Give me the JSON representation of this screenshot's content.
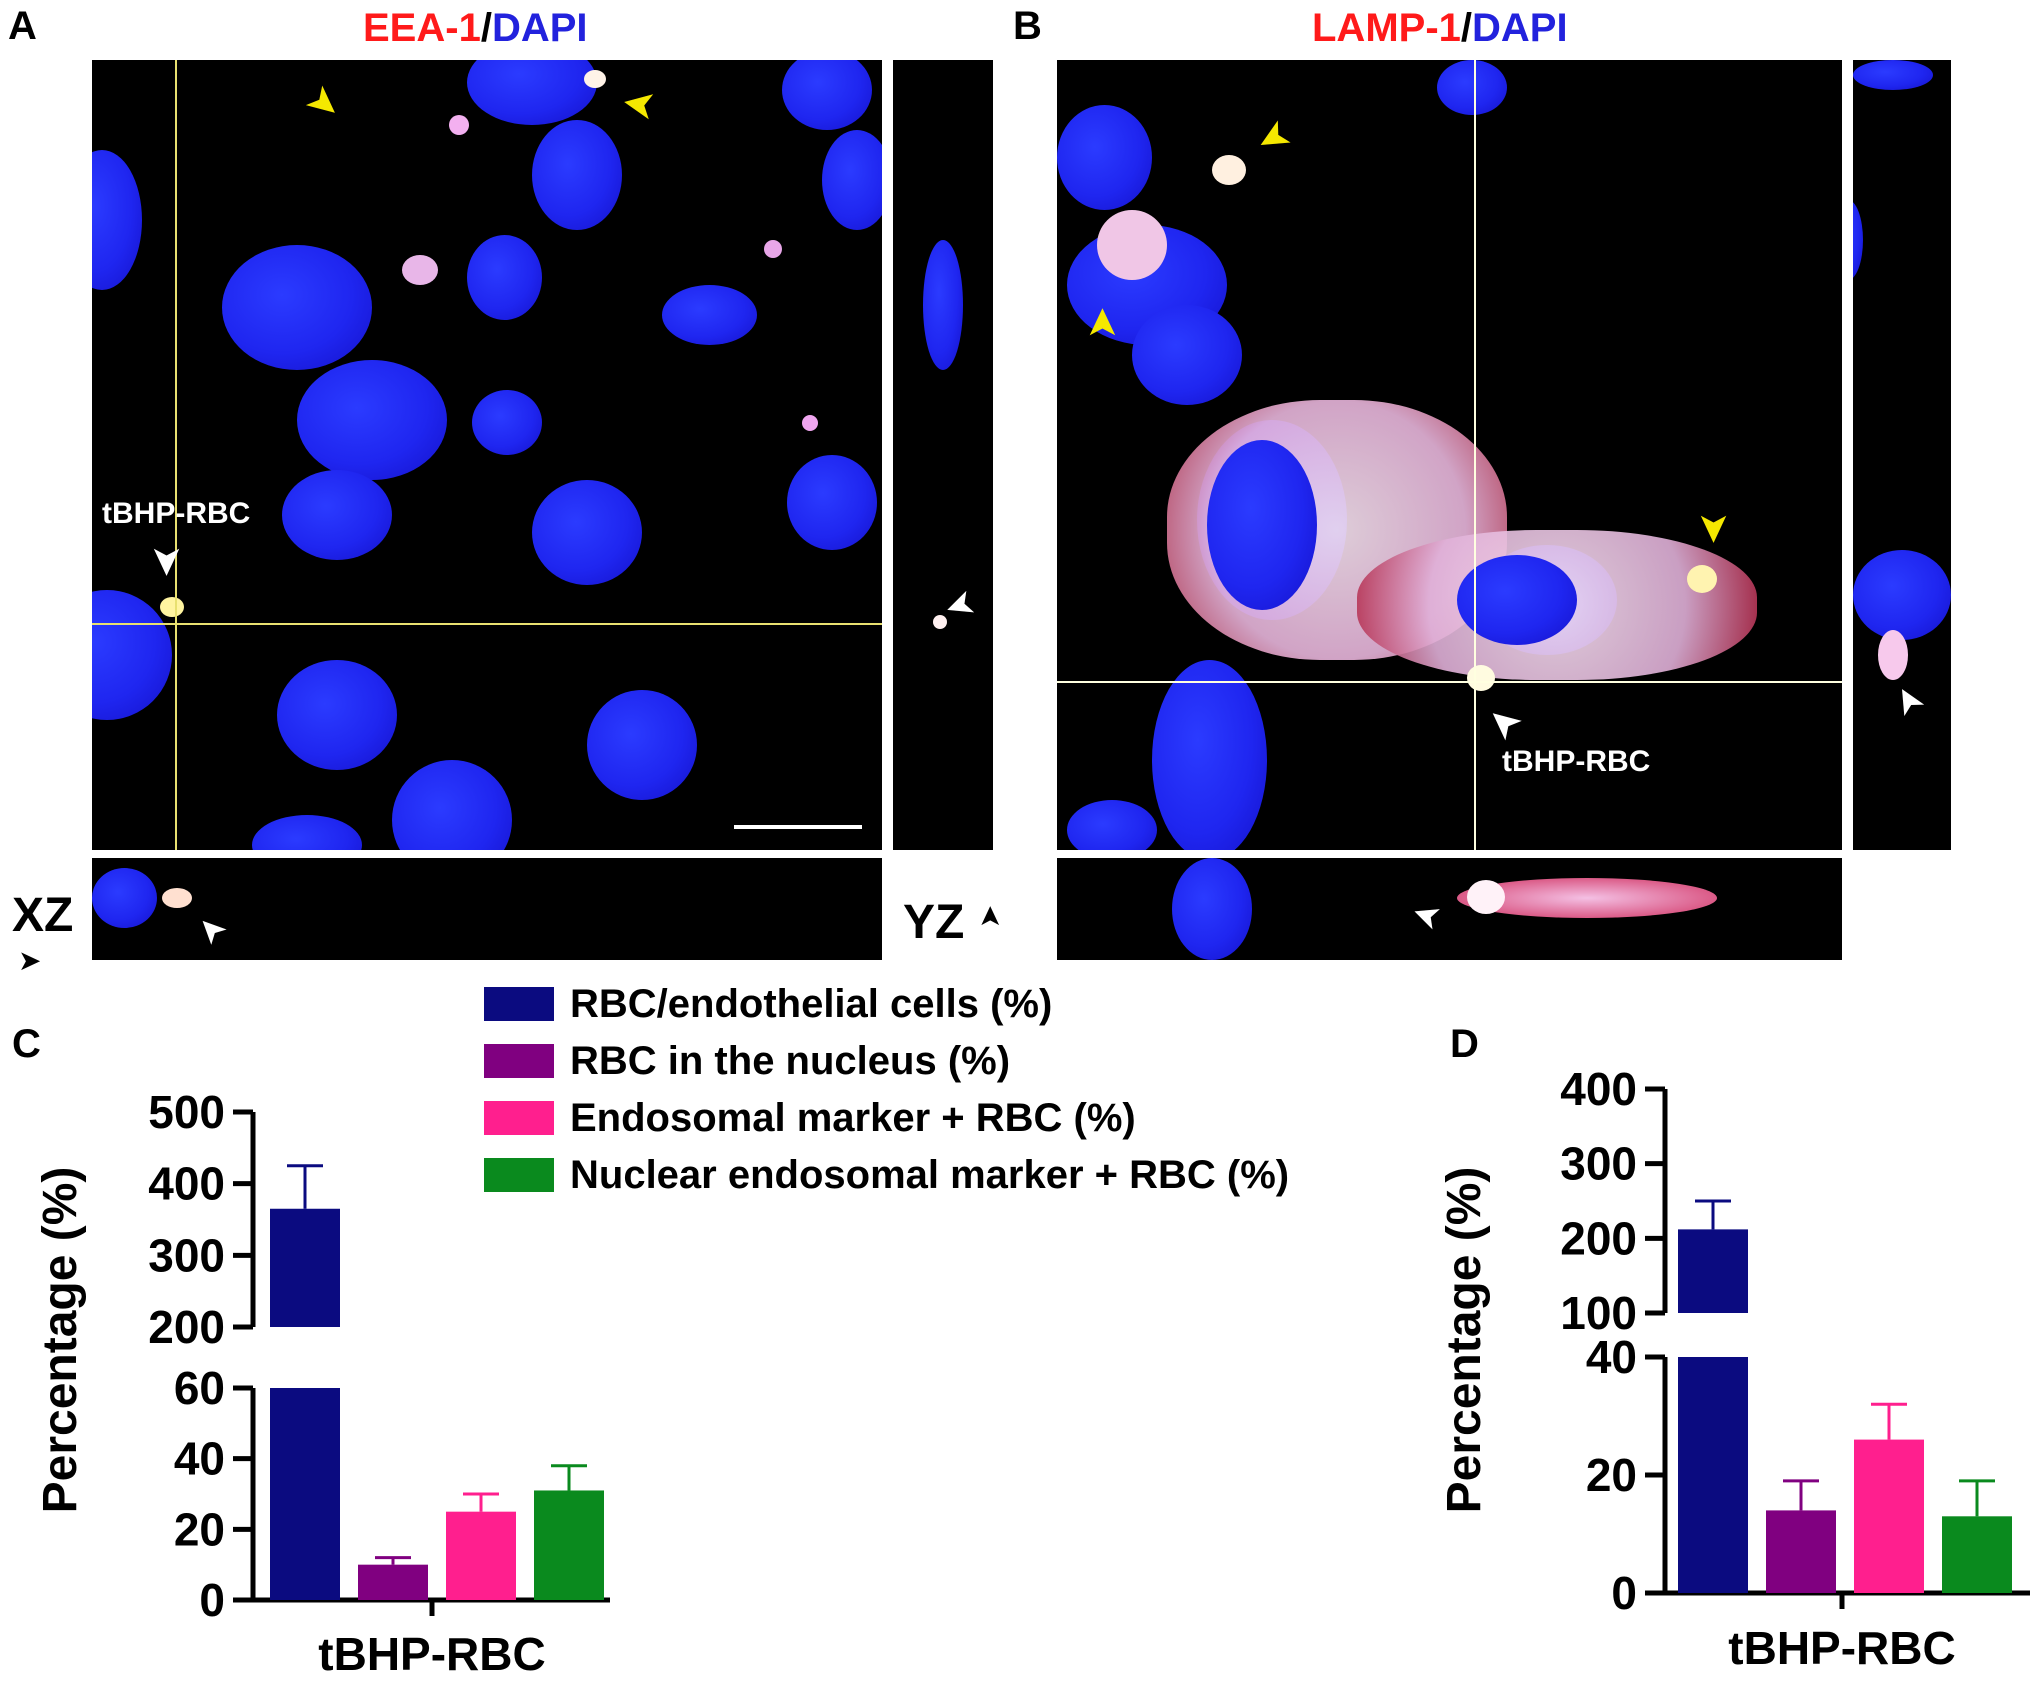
{
  "panel_a": {
    "letter": "A",
    "title_marker": "EEA-1",
    "title_sep": "/",
    "title_stain": "DAPI",
    "cell_label": "tBHP-RBC",
    "xz_label": "XZ",
    "yz_label": "YZ"
  },
  "panel_b": {
    "letter": "B",
    "title_marker": "LAMP-1",
    "title_sep": "/",
    "title_stain": "DAPI",
    "cell_label": "tBHP-RBC"
  },
  "panel_c": {
    "letter": "C"
  },
  "panel_d": {
    "letter": "D"
  },
  "legend": [
    {
      "label": "RBC/endothelial cells (%)",
      "color": "#0b0b80"
    },
    {
      "label": "RBC in the nucleus (%)",
      "color": "#800080"
    },
    {
      "label": "Endosomal marker + RBC (%)",
      "color": "#ff1f8e"
    },
    {
      "label": "Nuclear endosomal marker + RBC (%)",
      "color": "#0a8a1e"
    }
  ],
  "chart_data": [
    {
      "type": "bar",
      "panel": "C",
      "ylabel": "Percentage (%)",
      "xlabel": "tBHP-RBC",
      "categories": [
        "tBHP-RBC"
      ],
      "broken_axis": {
        "lower_range": [
          0,
          60
        ],
        "upper_range": [
          200,
          500
        ]
      },
      "lower_ticks": [
        "0",
        "20",
        "40",
        "60"
      ],
      "upper_ticks": [
        "200",
        "300",
        "400",
        "500"
      ],
      "series": [
        {
          "name": "RBC/endothelial cells (%)",
          "values": [
            365
          ],
          "error": [
            60
          ],
          "color": "#0b0b80"
        },
        {
          "name": "RBC in the nucleus (%)",
          "values": [
            10
          ],
          "error": [
            2
          ],
          "color": "#800080"
        },
        {
          "name": "Endosomal marker + RBC (%)",
          "values": [
            25
          ],
          "error": [
            5
          ],
          "color": "#ff1f8e"
        },
        {
          "name": "Nuclear endosomal marker + RBC (%)",
          "values": [
            31
          ],
          "error": [
            7
          ],
          "color": "#0a8a1e"
        }
      ]
    },
    {
      "type": "bar",
      "panel": "D",
      "ylabel": "Percentage (%)",
      "xlabel": "tBHP-RBC",
      "categories": [
        "tBHP-RBC"
      ],
      "broken_axis": {
        "lower_range": [
          0,
          40
        ],
        "upper_range": [
          100,
          400
        ]
      },
      "lower_ticks": [
        "0",
        "20",
        "40"
      ],
      "upper_ticks": [
        "100",
        "200",
        "300",
        "400"
      ],
      "series": [
        {
          "name": "RBC/endothelial cells (%)",
          "values": [
            212
          ],
          "error": [
            38
          ],
          "color": "#0b0b80"
        },
        {
          "name": "RBC in the nucleus (%)",
          "values": [
            14
          ],
          "error": [
            5
          ],
          "color": "#800080"
        },
        {
          "name": "Endosomal marker + RBC (%)",
          "values": [
            26
          ],
          "error": [
            6
          ],
          "color": "#ff1f8e"
        },
        {
          "name": "Nuclear endosomal marker + RBC (%)",
          "values": [
            13
          ],
          "error": [
            6
          ],
          "color": "#0a8a1e"
        }
      ]
    }
  ]
}
